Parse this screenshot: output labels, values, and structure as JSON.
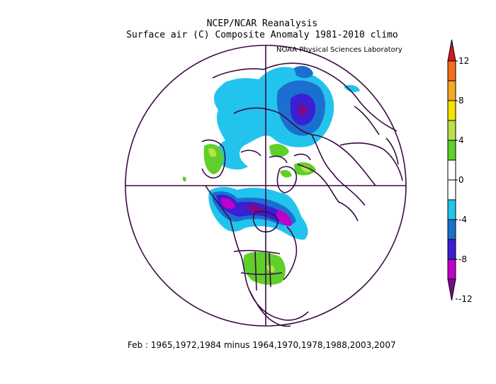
{
  "header": {
    "title": "NCEP/NCAR Reanalysis",
    "subtitle": "Surface air (C) Composite Anomaly 1981-2010 climo",
    "credit": "NOAA Physical Sciences Laboratory"
  },
  "footer": {
    "text": "Feb : 1965,1972,1984 minus 1964,1970,1978,1988,2003,2007"
  },
  "colorbar": {
    "labels": [
      "12",
      "8",
      "4",
      "0",
      "-4",
      "-8",
      "-12"
    ],
    "colors": [
      "#d7191c",
      "#f46d1f",
      "#f9a825",
      "#f4e400",
      "#b9e04a",
      "#5fd02a",
      "#ffffff",
      "#ffffff",
      "#22c4ee",
      "#1a6fcf",
      "#3a1fd4",
      "#c000c8",
      "#7a0b88"
    ]
  },
  "map": {
    "projection": "north-polar-stereographic",
    "colors": {
      "outline": "#3b0a45",
      "cold_light": "#22c4ee",
      "cold_mid": "#1a6fcf",
      "cold_strong": "#3a1fd4",
      "cold_very": "#c000c8",
      "cold_extreme": "#7a0b88",
      "warm_light": "#5fd02a",
      "warm_mid": "#b9e04a",
      "warm_strong": "#f4e400"
    }
  }
}
